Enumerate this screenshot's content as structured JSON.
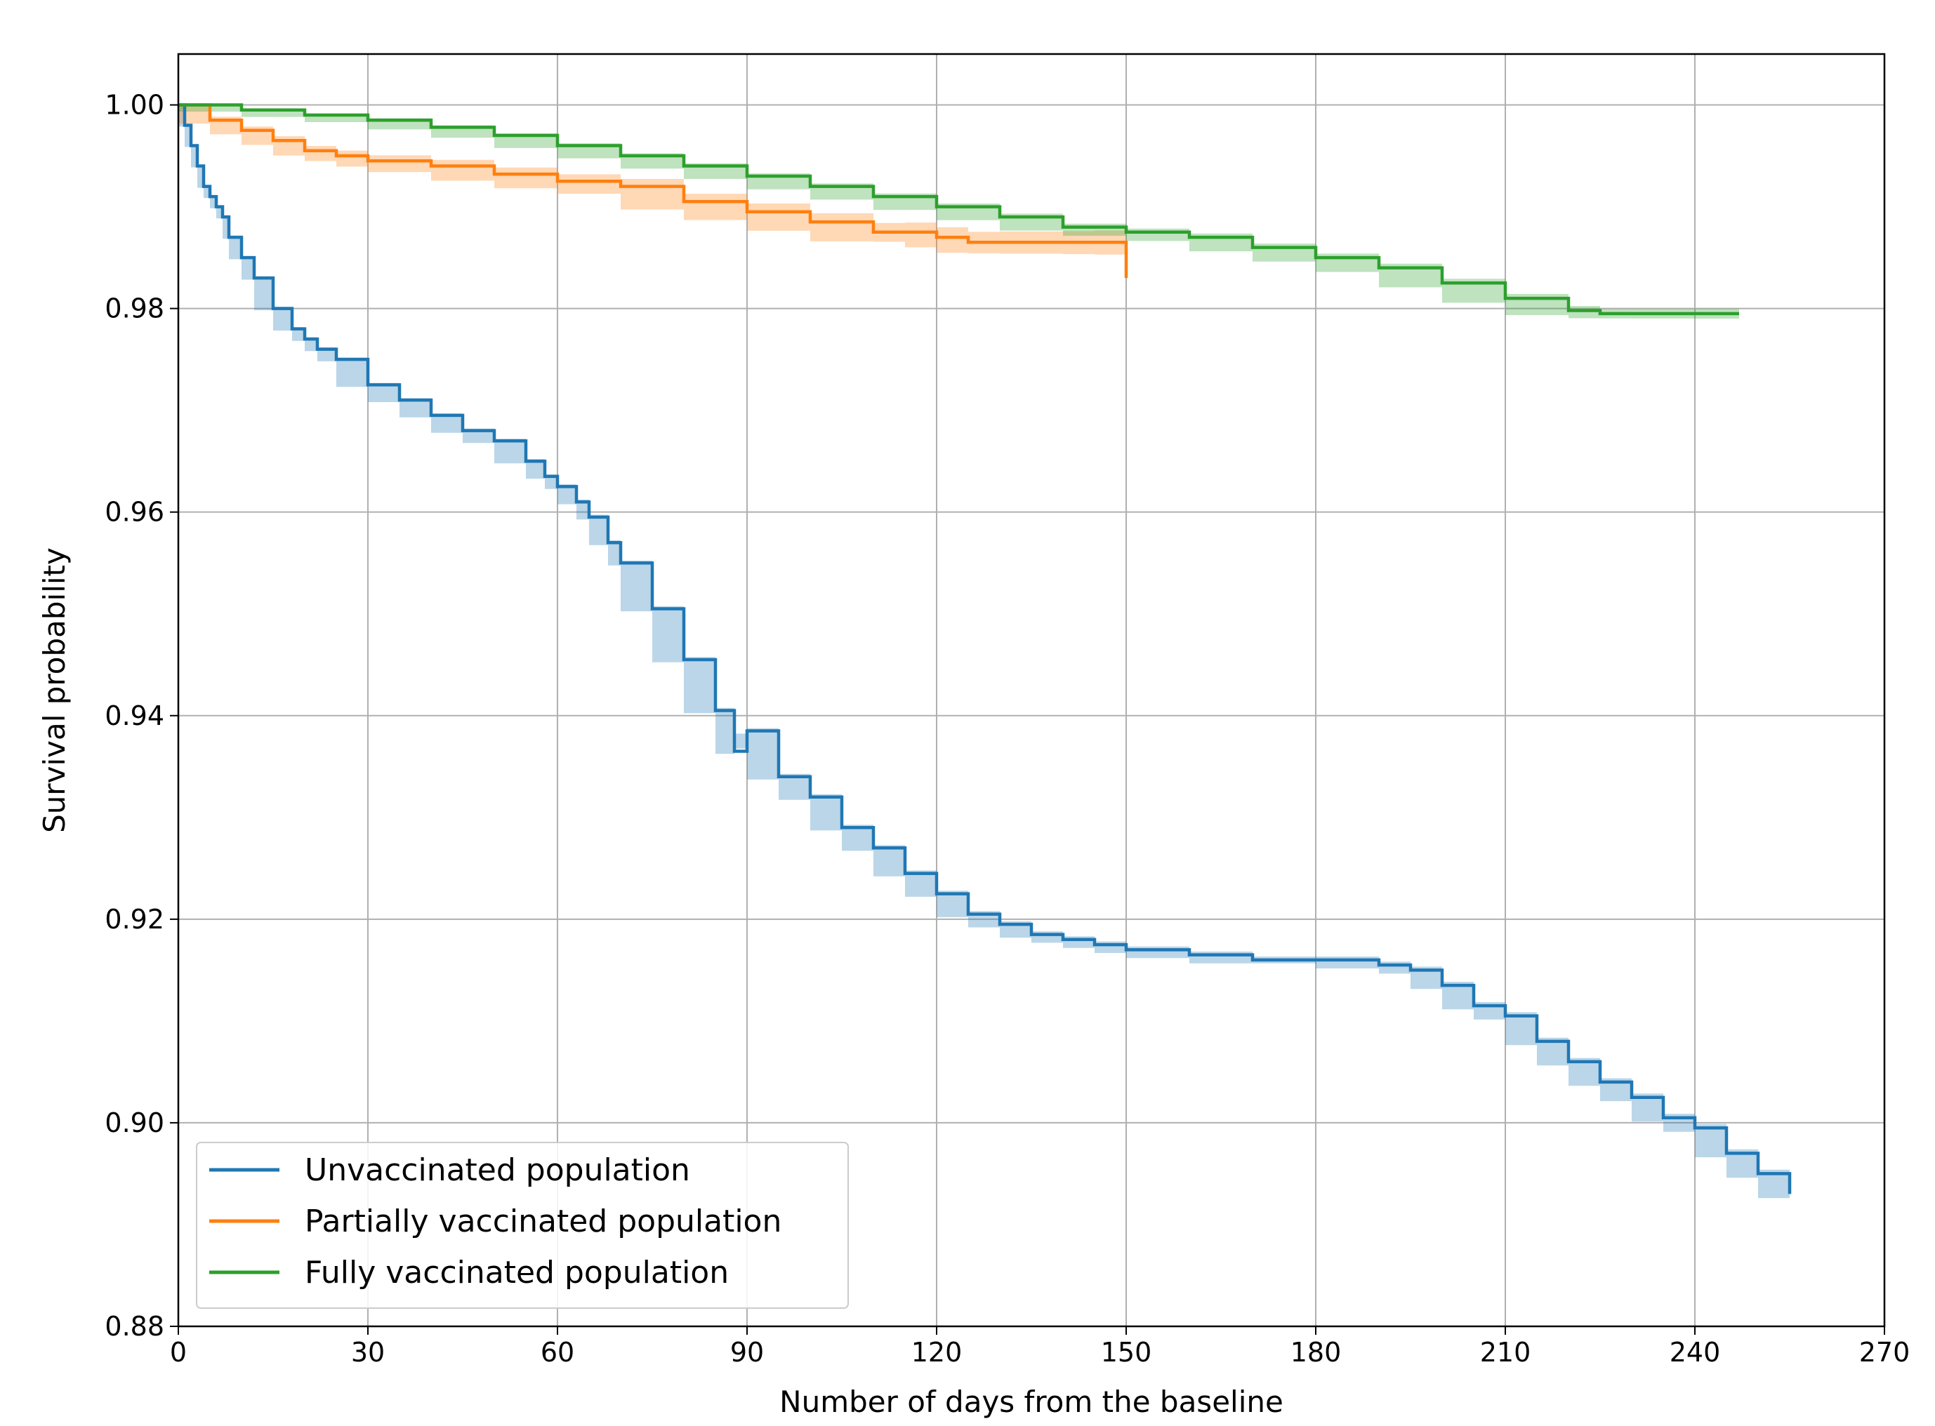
{
  "chart_data": {
    "type": "line",
    "title": "",
    "xlabel": "Number of days from the baseline",
    "ylabel": "Survival probability",
    "xlim": [
      0,
      270
    ],
    "ylim": [
      0.88,
      1.005
    ],
    "xticks": [
      0,
      30,
      60,
      90,
      120,
      150,
      180,
      210,
      240,
      270
    ],
    "xtick_labels": [
      "0",
      "30",
      "60",
      "90",
      "120",
      "150",
      "180",
      "210",
      "240",
      "270"
    ],
    "yticks": [
      0.88,
      0.9,
      0.92,
      0.94,
      0.96,
      0.98,
      1.0
    ],
    "ytick_labels": [
      "0.88",
      "0.90",
      "0.92",
      "0.94",
      "0.96",
      "0.98",
      "1.00"
    ],
    "grid": true,
    "legend_position": "lower-left",
    "series": [
      {
        "name": "Unvaccinated population",
        "color": "#1f77b4",
        "x": [
          0,
          1,
          2,
          3,
          4,
          5,
          6,
          7,
          8,
          10,
          12,
          15,
          18,
          20,
          22,
          25,
          30,
          35,
          40,
          45,
          50,
          55,
          58,
          60,
          63,
          65,
          68,
          70,
          75,
          80,
          85,
          88,
          90,
          95,
          100,
          105,
          110,
          115,
          120,
          125,
          130,
          135,
          140,
          145,
          150,
          160,
          170,
          180,
          190,
          195,
          200,
          205,
          210,
          215,
          220,
          225,
          230,
          235,
          240,
          245,
          250,
          255
        ],
        "y": [
          1.0,
          0.998,
          0.996,
          0.994,
          0.992,
          0.991,
          0.99,
          0.989,
          0.987,
          0.985,
          0.983,
          0.98,
          0.978,
          0.977,
          0.976,
          0.975,
          0.9725,
          0.971,
          0.9695,
          0.968,
          0.967,
          0.965,
          0.9635,
          0.9625,
          0.961,
          0.9595,
          0.957,
          0.955,
          0.9505,
          0.9455,
          0.9405,
          0.9365,
          0.9385,
          0.934,
          0.932,
          0.929,
          0.927,
          0.9245,
          0.9225,
          0.9205,
          0.9195,
          0.9185,
          0.918,
          0.9175,
          0.917,
          0.9165,
          0.916,
          0.916,
          0.9155,
          0.915,
          0.9135,
          0.9115,
          0.9105,
          0.908,
          0.906,
          0.904,
          0.9025,
          0.9005,
          0.8995,
          0.897,
          0.895,
          0.893
        ],
        "ci_halfwidth": 0.0004
      },
      {
        "name": "Partially vaccinated population",
        "color": "#ff7f0e",
        "x": [
          0,
          5,
          10,
          15,
          20,
          25,
          30,
          40,
          50,
          60,
          70,
          80,
          90,
          100,
          110,
          115,
          120,
          125,
          130,
          140,
          145,
          150
        ],
        "y": [
          1.0,
          0.9985,
          0.9975,
          0.9965,
          0.9955,
          0.995,
          0.9945,
          0.994,
          0.9932,
          0.9925,
          0.992,
          0.9905,
          0.9895,
          0.9885,
          0.9875,
          0.9875,
          0.987,
          0.9865,
          0.9865,
          0.9865,
          0.9865,
          0.9865
        ],
        "end_drop": 0.983,
        "ci_halfwidth_start": 0.0003,
        "ci_halfwidth_end": 0.0012
      },
      {
        "name": "Fully vaccinated population",
        "color": "#2ca02c",
        "x": [
          0,
          10,
          20,
          30,
          40,
          50,
          60,
          70,
          80,
          90,
          100,
          110,
          120,
          130,
          140,
          150,
          160,
          170,
          180,
          190,
          200,
          210,
          220,
          225,
          230,
          240,
          247
        ],
        "y": [
          1.0,
          0.9995,
          0.999,
          0.9985,
          0.9978,
          0.997,
          0.996,
          0.995,
          0.994,
          0.993,
          0.992,
          0.991,
          0.99,
          0.989,
          0.988,
          0.9875,
          0.987,
          0.986,
          0.985,
          0.984,
          0.9825,
          0.981,
          0.9798,
          0.9795,
          0.9795,
          0.9795,
          0.9795
        ],
        "ci_halfwidth": 0.0005
      }
    ]
  }
}
